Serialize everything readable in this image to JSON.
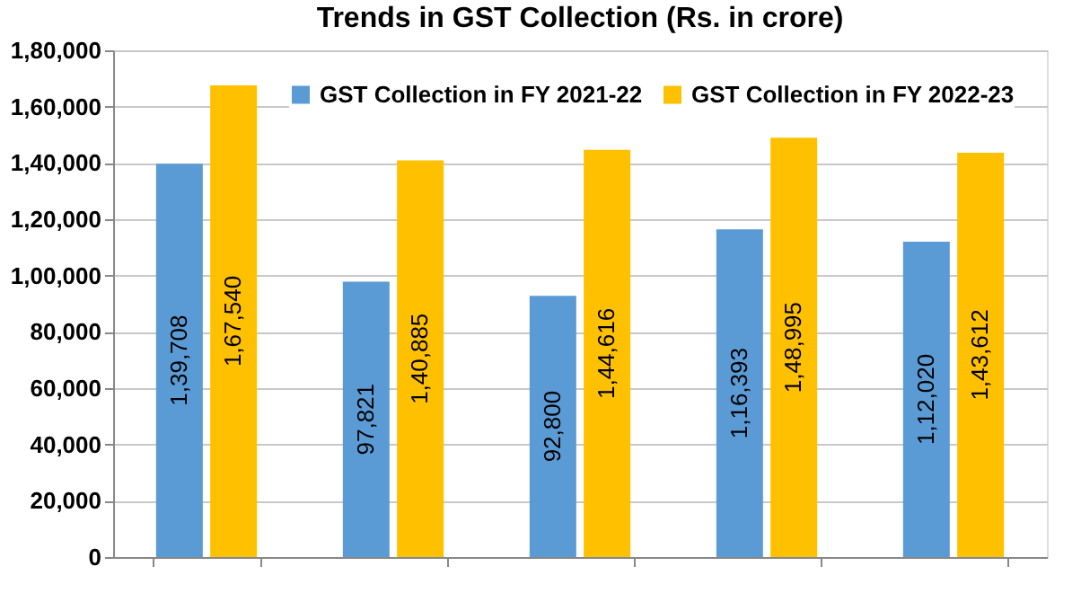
{
  "chart_data": {
    "type": "bar",
    "title": "Trends in GST Collection (Rs. in crore)",
    "categories": [
      null,
      null,
      null,
      null,
      null
    ],
    "series": [
      {
        "name": "GST Collection in FY 2021-22",
        "color": "#5b9bd5",
        "values": [
          139708,
          97821,
          92800,
          116393,
          112020
        ],
        "value_labels": [
          "1,39,708",
          "97,821",
          "92,800",
          "1,16,393",
          "1,12,020"
        ]
      },
      {
        "name": "GST Collection in FY 2022-23",
        "color": "#ffc000",
        "values": [
          167540,
          140885,
          144616,
          148995,
          143612
        ],
        "value_labels": [
          "1,67,540",
          "1,40,885",
          "1,44,616",
          "1,48,995",
          "1,43,612"
        ]
      }
    ],
    "ylim": [
      0,
      180000
    ],
    "yticks": [
      0,
      {
        "value": 20000,
        "label": "20,000"
      },
      {
        "value": 40000,
        "label": "40,000"
      },
      {
        "value": 60000,
        "label": "60,000"
      },
      {
        "value": 80000,
        "label": "80,000"
      },
      {
        "value": 100000,
        "label": "1,00,000"
      },
      {
        "value": 120000,
        "label": "1,20,000"
      },
      {
        "value": 140000,
        "label": "1,40,000"
      },
      {
        "value": 160000,
        "label": "1,60,000"
      },
      {
        "value": 180000,
        "label": "1,80,000"
      }
    ],
    "grid": "y",
    "legend": "top right",
    "tick_labels": "y"
  }
}
